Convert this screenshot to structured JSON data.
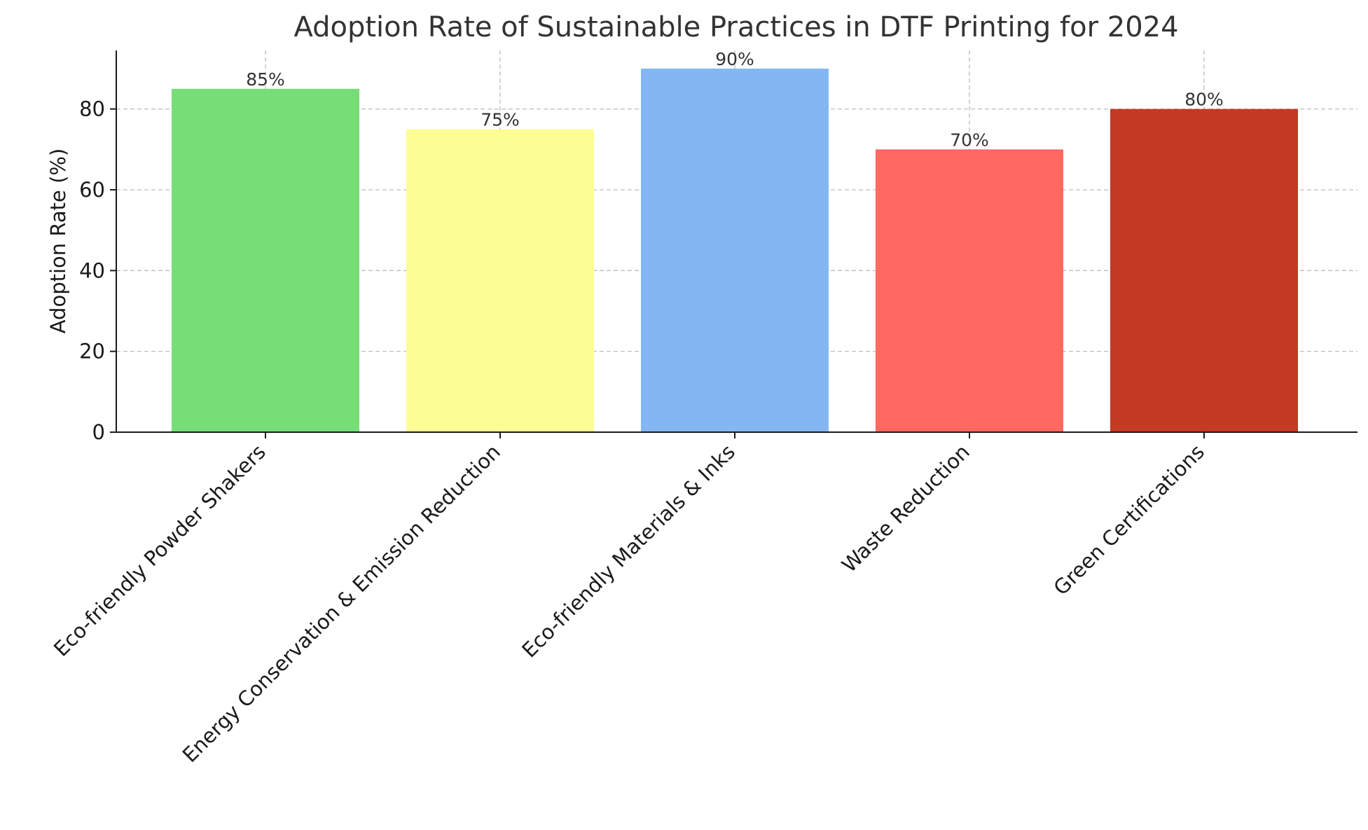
{
  "chart_data": {
    "type": "bar",
    "title": "Adoption Rate of Sustainable Practices in DTF Printing for 2024",
    "xlabel": "",
    "ylabel": "Adoption Rate (%)",
    "ylim": [
      0,
      94.5
    ],
    "yticks": [
      0,
      20,
      40,
      60,
      80
    ],
    "categories": [
      "Eco-friendly Powder Shakers",
      "Energy Conservation & Emission Reduction",
      "Eco-friendly Materials & Inks",
      "Waste Reduction",
      "Green Certifications"
    ],
    "values": [
      85,
      75,
      90,
      70,
      80
    ],
    "value_labels": [
      "85%",
      "75%",
      "90%",
      "70%",
      "80%"
    ],
    "colors": [
      "#77dd77",
      "#fdfd96",
      "#84b6f4",
      "#ff6961",
      "#c23b22"
    ],
    "grid": true,
    "legend": "none"
  }
}
